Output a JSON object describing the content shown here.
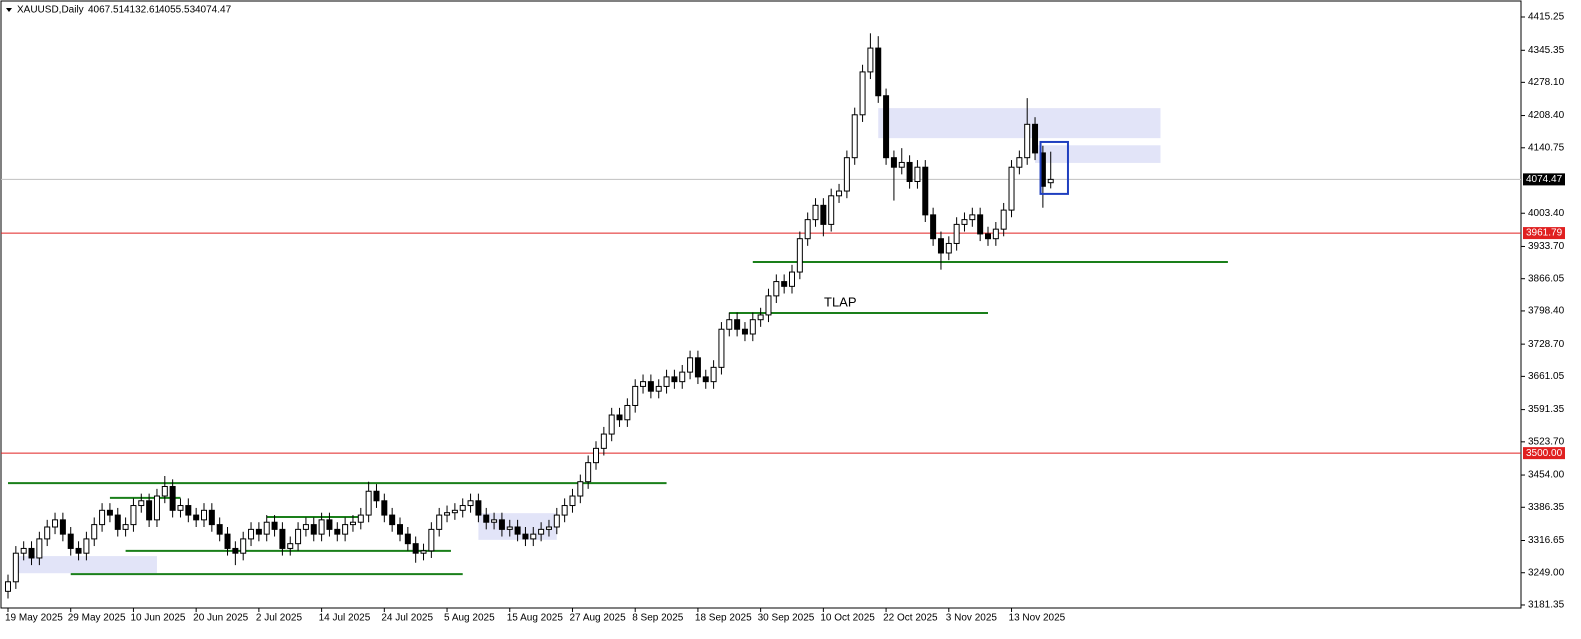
{
  "chart_data": {
    "type": "candlestick",
    "title": "XAUUSD,Daily",
    "annotation": "TLAP",
    "categories": [
      "19 May 2025",
      null,
      null,
      null,
      null,
      null,
      null,
      null,
      "29 May 2025",
      null,
      null,
      null,
      null,
      null,
      null,
      null,
      "10 Jun 2025",
      null,
      null,
      null,
      null,
      null,
      null,
      null,
      "20 Jun 2025",
      null,
      null,
      null,
      null,
      null,
      null,
      null,
      "2 Jul 2025",
      null,
      null,
      null,
      null,
      null,
      null,
      null,
      "14 Jul 2025",
      null,
      null,
      null,
      null,
      null,
      null,
      null,
      "24 Jul 2025",
      null,
      null,
      null,
      null,
      null,
      null,
      null,
      "5 Aug 2025",
      null,
      null,
      null,
      null,
      null,
      null,
      null,
      "15 Aug 2025",
      null,
      null,
      null,
      null,
      null,
      null,
      null,
      "27 Aug 2025",
      null,
      null,
      null,
      null,
      null,
      null,
      null,
      "8 Sep 2025",
      null,
      null,
      null,
      null,
      null,
      null,
      null,
      "18 Sep 2025",
      null,
      null,
      null,
      null,
      null,
      null,
      null,
      "30 Sep 2025",
      null,
      null,
      null,
      null,
      null,
      null,
      null,
      "10 Oct 2025",
      null,
      null,
      null,
      null,
      null,
      null,
      null,
      "22 Oct 2025",
      null,
      null,
      null,
      null,
      null,
      null,
      null,
      "3 Nov 2025",
      null,
      null,
      null,
      null,
      null,
      null,
      null,
      "13 Nov 2025",
      null,
      null,
      null,
      null,
      null
    ],
    "open": [
      3210,
      3230,
      3290,
      3300,
      3280,
      3320,
      3345,
      3360,
      3330,
      3300,
      3290,
      3320,
      3350,
      3380,
      3370,
      3340,
      3350,
      3390,
      3400,
      3360,
      3410,
      3430,
      3380,
      3390,
      3370,
      3360,
      3380,
      3350,
      3330,
      3300,
      3290,
      3320,
      3340,
      3330,
      3355,
      3340,
      3300,
      3310,
      3340,
      3350,
      3330,
      3360,
      3340,
      3330,
      3350,
      3355,
      3370,
      3420,
      3400,
      3370,
      3350,
      3330,
      3310,
      3290,
      3295,
      3340,
      3370,
      3375,
      3380,
      3390,
      3400,
      3370,
      3355,
      3360,
      3340,
      3345,
      3330,
      3320,
      3330,
      3340,
      3345,
      3370,
      3390,
      3410,
      3440,
      3480,
      3510,
      3540,
      3580,
      3570,
      3600,
      3640,
      3650,
      3630,
      3640,
      3660,
      3650,
      3670,
      3700,
      3660,
      3650,
      3680,
      3760,
      3780,
      3760,
      3750,
      3780,
      3790,
      3830,
      3860,
      3850,
      3880,
      3950,
      3990,
      4020,
      3980,
      4040,
      4050,
      4120,
      4210,
      4300,
      4350,
      4250,
      4120,
      4100,
      4110,
      4070,
      4100,
      4000,
      3950,
      3920,
      3940,
      3980,
      3990,
      4000,
      3960,
      3950,
      3970,
      4010,
      4100,
      4120,
      4190,
      4130,
      4067.51
    ],
    "high": [
      3245,
      3305,
      3315,
      3315,
      3335,
      3360,
      3375,
      3375,
      3345,
      3315,
      3335,
      3365,
      3395,
      3395,
      3385,
      3365,
      3405,
      3415,
      3415,
      3425,
      3452,
      3445,
      3405,
      3405,
      3385,
      3395,
      3395,
      3365,
      3345,
      3315,
      3335,
      3355,
      3355,
      3370,
      3370,
      3355,
      3325,
      3355,
      3365,
      3365,
      3375,
      3375,
      3355,
      3365,
      3370,
      3385,
      3440,
      3435,
      3415,
      3385,
      3365,
      3345,
      3325,
      3310,
      3355,
      3385,
      3390,
      3395,
      3405,
      3415,
      3415,
      3385,
      3375,
      3375,
      3360,
      3360,
      3345,
      3345,
      3355,
      3360,
      3385,
      3405,
      3425,
      3455,
      3495,
      3525,
      3555,
      3595,
      3595,
      3615,
      3655,
      3665,
      3665,
      3655,
      3675,
      3675,
      3685,
      3715,
      3715,
      3675,
      3695,
      3775,
      3795,
      3795,
      3775,
      3795,
      3805,
      3845,
      3875,
      3875,
      3895,
      3965,
      4005,
      4035,
      4035,
      4055,
      4065,
      4135,
      4225,
      4315,
      4381,
      4375,
      4265,
      4135,
      4140,
      4125,
      4115,
      4115,
      4015,
      3965,
      3955,
      3995,
      4005,
      4015,
      4015,
      3975,
      3985,
      4025,
      4115,
      4135,
      4245,
      4205,
      4145,
      4132.61
    ],
    "low": [
      3195,
      3215,
      3275,
      3265,
      3265,
      3305,
      3330,
      3315,
      3285,
      3275,
      3275,
      3305,
      3335,
      3355,
      3325,
      3325,
      3335,
      3375,
      3345,
      3345,
      3395,
      3365,
      3365,
      3355,
      3345,
      3345,
      3335,
      3315,
      3285,
      3265,
      3275,
      3305,
      3315,
      3315,
      3325,
      3285,
      3285,
      3295,
      3325,
      3315,
      3315,
      3325,
      3315,
      3315,
      3335,
      3340,
      3355,
      3385,
      3355,
      3335,
      3315,
      3295,
      3270,
      3275,
      3280,
      3325,
      3355,
      3360,
      3365,
      3375,
      3355,
      3340,
      3340,
      3325,
      3325,
      3315,
      3305,
      3305,
      3315,
      3325,
      3330,
      3355,
      3375,
      3395,
      3425,
      3465,
      3495,
      3525,
      3555,
      3555,
      3585,
      3625,
      3615,
      3615,
      3625,
      3635,
      3635,
      3655,
      3645,
      3635,
      3635,
      3665,
      3745,
      3745,
      3735,
      3735,
      3765,
      3775,
      3815,
      3835,
      3835,
      3865,
      3935,
      3975,
      3955,
      3965,
      4025,
      4035,
      4105,
      4195,
      4285,
      4235,
      4105,
      4030,
      4085,
      4055,
      4055,
      3985,
      3935,
      3885,
      3905,
      3925,
      3965,
      3975,
      3945,
      3935,
      3935,
      3955,
      3995,
      4085,
      4105,
      4115,
      4015,
      4055.53
    ],
    "close": [
      3230,
      3290,
      3300,
      3280,
      3320,
      3345,
      3360,
      3330,
      3300,
      3290,
      3320,
      3350,
      3380,
      3370,
      3340,
      3350,
      3390,
      3400,
      3360,
      3410,
      3430,
      3380,
      3390,
      3370,
      3360,
      3380,
      3350,
      3330,
      3300,
      3290,
      3320,
      3340,
      3330,
      3355,
      3340,
      3300,
      3310,
      3340,
      3350,
      3330,
      3360,
      3340,
      3330,
      3350,
      3355,
      3370,
      3420,
      3400,
      3370,
      3350,
      3330,
      3310,
      3290,
      3295,
      3340,
      3370,
      3375,
      3380,
      3390,
      3400,
      3370,
      3355,
      3360,
      3340,
      3345,
      3330,
      3320,
      3330,
      3340,
      3345,
      3370,
      3390,
      3410,
      3440,
      3480,
      3510,
      3540,
      3580,
      3570,
      3600,
      3640,
      3650,
      3630,
      3640,
      3660,
      3650,
      3670,
      3700,
      3660,
      3650,
      3680,
      3760,
      3780,
      3760,
      3750,
      3780,
      3790,
      3830,
      3860,
      3850,
      3880,
      3950,
      3990,
      4020,
      3980,
      4040,
      4050,
      4120,
      4210,
      4300,
      4350,
      4250,
      4120,
      4100,
      4110,
      4070,
      4100,
      4000,
      3950,
      3920,
      3940,
      3980,
      3990,
      4000,
      3960,
      3950,
      3970,
      4010,
      4100,
      4120,
      4190,
      4130,
      4060,
      4074.47
    ],
    "ylim": [
      3175,
      4444.6
    ],
    "yticks": [
      4415.25,
      4345.35,
      {
        "value": 4278.1,
        "label": "4278.10"
      },
      {
        "value": 4208.4,
        "label": "4208.40"
      },
      4140.75,
      {
        "value": 4003.4,
        "label": "4003.40"
      },
      {
        "value": 3933.7,
        "label": "3933.70"
      },
      3866.05,
      {
        "value": 3798.4,
        "label": "3798.40"
      },
      {
        "value": 3728.7,
        "label": "3728.70"
      },
      3661.05,
      3591.35,
      {
        "value": 3523.7,
        "label": "3523.70"
      },
      {
        "value": 3454,
        "label": "3454.00"
      },
      3386.35,
      3316.65,
      {
        "value": 3249,
        "label": "3249.00"
      },
      3181.35
    ],
    "current_price_color": "#c0c0c0",
    "price_lines": [
      {
        "value": 3961.79,
        "color": "#e02020"
      },
      {
        "value": 3500,
        "label": "3500.00",
        "color": "#e02020"
      }
    ],
    "levels": [
      {
        "value": 3901,
        "x": [
          95,
          155.6
        ],
        "color": "#1a7f1a"
      },
      {
        "value": 3794,
        "x": [
          92,
          125
        ],
        "color": "#1a7f1a"
      },
      {
        "value": 3437,
        "x": [
          0,
          84
        ],
        "color": "#1a7f1a"
      },
      {
        "value": 3406,
        "x": [
          13,
          22
        ],
        "color": "#1a7f1a"
      },
      {
        "value": 3366,
        "x": [
          33,
          45
        ],
        "color": "#1a7f1a"
      },
      {
        "value": 3295,
        "x": [
          15,
          56.5
        ],
        "color": "#1a7f1a"
      },
      {
        "value": 3246,
        "x": [
          8,
          58
        ],
        "color": "#1a7f1a"
      }
    ],
    "zones": [
      {
        "y": [
          4161,
          4224
        ],
        "x": [
          111,
          147
        ],
        "color": "#e2e4f8"
      },
      {
        "y": [
          4109,
          4146
        ],
        "x": [
          131,
          147
        ],
        "color": "#e2e4f8"
      },
      {
        "y": [
          3248,
          3284
        ],
        "x": [
          1,
          19
        ],
        "color": "#e2e4f8"
      },
      {
        "y": [
          3318,
          3374
        ],
        "x": [
          60,
          70
        ],
        "color": "#e2e4f8"
      }
    ],
    "box": {
      "y": [
        4044,
        4153
      ],
      "x": [
        131.7,
        135.2
      ],
      "color": "#1f3fbf"
    }
  }
}
